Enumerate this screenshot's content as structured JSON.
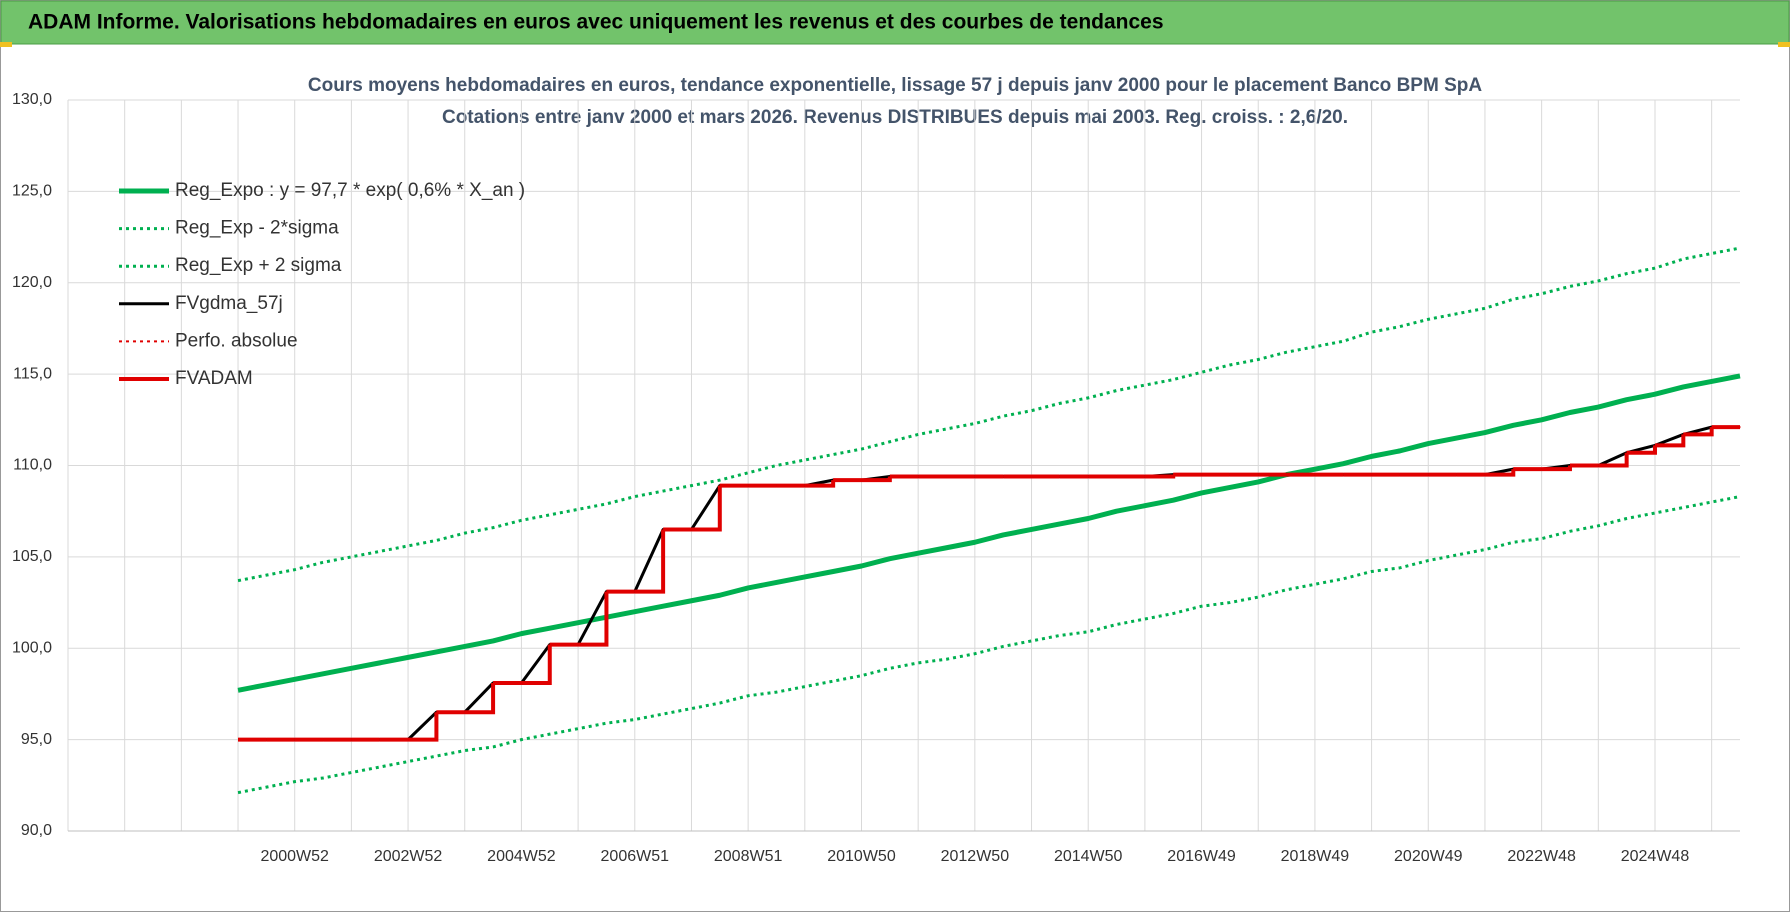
{
  "header": {
    "title": "ADAM Informe. Valorisations hebdomadaires en euros avec uniquement les revenus et des courbes de tendances"
  },
  "chart_data": {
    "type": "line",
    "title": "Cours moyens hebdomadaires en euros, tendance exponentielle, lissage 57 j depuis janv 2000  pour le placement Banco BPM SpA",
    "subtitle": "Cotations entre janv 2000 et mars 2026. Revenus DISTRIBUES depuis mai 2003. Reg. croiss. : 2,6/20.",
    "categories": [
      null,
      null,
      null,
      null,
      null,
      null,
      null,
      null,
      "2000W52",
      null,
      null,
      null,
      "2002W52",
      null,
      null,
      null,
      "2004W52",
      null,
      null,
      null,
      "2006W51",
      null,
      null,
      null,
      "2008W51",
      null,
      null,
      null,
      "2010W50",
      null,
      null,
      null,
      "2012W50",
      null,
      null,
      null,
      "2014W50",
      null,
      null,
      null,
      "2016W49",
      null,
      null,
      null,
      "2018W49",
      null,
      null,
      null,
      "2020W49",
      null,
      null,
      null,
      "2022W48",
      null,
      null,
      null,
      "2024W48",
      null,
      null,
      null
    ],
    "ylim": [
      90,
      130
    ],
    "yticks": [
      {
        "value": 90,
        "label": "90,0"
      },
      {
        "value": 95,
        "label": "95,0"
      },
      {
        "value": 100,
        "label": "100,0"
      },
      {
        "value": 105,
        "label": "105,0"
      },
      {
        "value": 110,
        "label": "110,0"
      },
      {
        "value": 115,
        "label": "115,0"
      },
      {
        "value": 120,
        "label": "120,0"
      },
      {
        "value": 125,
        "label": "125,0"
      },
      {
        "value": 130,
        "label": "130,0"
      }
    ],
    "grid": true,
    "legend": "top-left",
    "series": [
      {
        "name": "Reg_Expo : y = 97,7 * exp( 0,6% *  X_an )",
        "color": "#00b050",
        "style": "solid",
        "width": 5,
        "step": false,
        "values": [
          null,
          null,
          null,
          null,
          null,
          null,
          97.7,
          98.0,
          98.3,
          98.6,
          98.9,
          99.2,
          99.5,
          99.8,
          100.1,
          100.4,
          100.8,
          101.1,
          101.4,
          101.7,
          102.0,
          102.3,
          102.6,
          102.9,
          103.3,
          103.6,
          103.9,
          104.2,
          104.5,
          104.9,
          105.2,
          105.5,
          105.8,
          106.2,
          106.5,
          106.8,
          107.1,
          107.5,
          107.8,
          108.1,
          108.5,
          108.8,
          109.1,
          109.5,
          109.8,
          110.1,
          110.5,
          110.8,
          111.2,
          111.5,
          111.8,
          112.2,
          112.5,
          112.9,
          113.2,
          113.6,
          113.9,
          114.3,
          114.6,
          114.9
        ]
      },
      {
        "name": "Reg_Exp - 2*sigma",
        "color": "#00b050",
        "style": "dotted",
        "width": 3,
        "step": false,
        "values": [
          null,
          null,
          null,
          null,
          null,
          null,
          92.1,
          92.4,
          92.7,
          92.9,
          93.2,
          93.5,
          93.8,
          94.1,
          94.4,
          94.6,
          95.0,
          95.3,
          95.6,
          95.9,
          96.1,
          96.4,
          96.7,
          97.0,
          97.4,
          97.6,
          97.9,
          98.2,
          98.5,
          98.9,
          99.2,
          99.4,
          99.7,
          100.1,
          100.4,
          100.7,
          100.9,
          101.3,
          101.6,
          101.9,
          102.3,
          102.5,
          102.8,
          103.2,
          103.5,
          103.8,
          104.2,
          104.4,
          104.8,
          105.1,
          105.4,
          105.8,
          106.0,
          106.4,
          106.7,
          107.1,
          107.4,
          107.7,
          108.0,
          108.3
        ]
      },
      {
        "name": "Reg_Exp + 2 sigma",
        "color": "#00b050",
        "style": "dotted",
        "width": 3,
        "step": false,
        "values": [
          null,
          null,
          null,
          null,
          null,
          null,
          103.7,
          104.0,
          104.3,
          104.7,
          105.0,
          105.3,
          105.6,
          105.9,
          106.3,
          106.6,
          107.0,
          107.3,
          107.6,
          107.9,
          108.3,
          108.6,
          108.9,
          109.2,
          109.6,
          110.0,
          110.3,
          110.6,
          110.9,
          111.3,
          111.7,
          112.0,
          112.3,
          112.7,
          113.0,
          113.4,
          113.7,
          114.1,
          114.4,
          114.7,
          115.1,
          115.5,
          115.8,
          116.2,
          116.5,
          116.8,
          117.3,
          117.6,
          118.0,
          118.3,
          118.6,
          119.1,
          119.4,
          119.8,
          120.1,
          120.5,
          120.8,
          121.3,
          121.6,
          121.9
        ]
      },
      {
        "name": "FVgdma_57j",
        "color": "#000000",
        "style": "solid",
        "width": 3,
        "step": false,
        "values": [
          null,
          null,
          null,
          null,
          null,
          null,
          95.0,
          95.0,
          95.0,
          95.0,
          95.0,
          95.0,
          95.0,
          96.5,
          96.5,
          98.1,
          98.1,
          100.2,
          100.2,
          103.1,
          103.1,
          106.5,
          106.5,
          108.9,
          108.9,
          108.9,
          108.9,
          109.2,
          109.2,
          109.4,
          109.4,
          109.4,
          109.4,
          109.4,
          109.4,
          109.4,
          109.4,
          109.4,
          109.4,
          109.5,
          109.5,
          109.5,
          109.5,
          109.5,
          109.5,
          109.5,
          109.5,
          109.5,
          109.5,
          109.5,
          109.5,
          109.8,
          109.8,
          110.0,
          110.0,
          110.7,
          111.1,
          111.7,
          112.1,
          112.1
        ]
      },
      {
        "name": "Perfo. absolue",
        "color": "#e00000",
        "style": "dotted",
        "width": 2,
        "step": true,
        "values": [
          null,
          null,
          null,
          null,
          null,
          null,
          95.0,
          95.0,
          95.0,
          95.0,
          95.0,
          95.0,
          95.0,
          96.5,
          96.5,
          98.1,
          98.1,
          100.2,
          100.2,
          103.1,
          103.1,
          106.5,
          106.5,
          108.9,
          108.9,
          108.9,
          108.9,
          109.2,
          109.2,
          109.4,
          109.4,
          109.4,
          109.4,
          109.4,
          109.4,
          109.4,
          109.4,
          109.4,
          109.4,
          109.5,
          109.5,
          109.5,
          109.5,
          109.5,
          109.5,
          109.5,
          109.5,
          109.5,
          109.5,
          109.5,
          109.5,
          109.8,
          109.8,
          110.0,
          110.0,
          110.7,
          111.1,
          111.7,
          112.1,
          112.1
        ]
      },
      {
        "name": "FVADAM",
        "color": "#e00000",
        "style": "solid",
        "width": 4,
        "step": true,
        "values": [
          null,
          null,
          null,
          null,
          null,
          null,
          95.0,
          95.0,
          95.0,
          95.0,
          95.0,
          95.0,
          95.0,
          96.5,
          96.5,
          98.1,
          98.1,
          100.2,
          100.2,
          103.1,
          103.1,
          106.5,
          106.5,
          108.9,
          108.9,
          108.9,
          108.9,
          109.2,
          109.2,
          109.4,
          109.4,
          109.4,
          109.4,
          109.4,
          109.4,
          109.4,
          109.4,
          109.4,
          109.4,
          109.5,
          109.5,
          109.5,
          109.5,
          109.5,
          109.5,
          109.5,
          109.5,
          109.5,
          109.5,
          109.5,
          109.5,
          109.8,
          109.8,
          110.0,
          110.0,
          110.7,
          111.1,
          111.7,
          112.1,
          112.1
        ]
      }
    ]
  }
}
